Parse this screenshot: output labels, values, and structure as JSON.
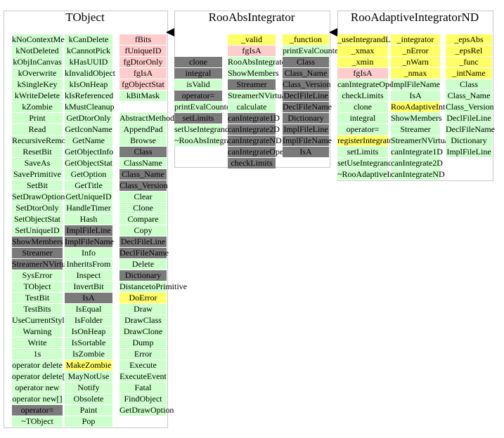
{
  "colors": {
    "green": "#ccffcc",
    "pink": "#ffcccc",
    "yellow": "#ffff66",
    "dark": "#7a7a7a"
  },
  "boxes": [
    {
      "title": "TObject",
      "columns": [
        [
          [
            "kNoContextMenu",
            "g"
          ],
          [
            "kNotDeleted",
            "g"
          ],
          [
            "kObjInCanvas",
            "g"
          ],
          [
            "kOverwrite",
            "g"
          ],
          [
            "kSingleKey",
            "g"
          ],
          [
            "kWriteDelete",
            "g"
          ],
          [
            "kZombie",
            "g"
          ],
          [
            "Print",
            "g"
          ],
          [
            "Read",
            "g"
          ],
          [
            "RecursiveRemove",
            "g"
          ],
          [
            "ResetBit",
            "g"
          ],
          [
            "SaveAs",
            "g"
          ],
          [
            "SavePrimitive",
            "g"
          ],
          [
            "SetBit",
            "g"
          ],
          [
            "SetDrawOption",
            "g"
          ],
          [
            "SetDtorOnly",
            "g"
          ],
          [
            "SetObjectStat",
            "g"
          ],
          [
            "SetUniqueID",
            "g"
          ],
          [
            "ShowMembers",
            "d"
          ],
          [
            "Streamer",
            "d"
          ],
          [
            "StreamerNVirtual",
            "d"
          ],
          [
            "SysError",
            "g"
          ],
          [
            "TObject",
            "g"
          ],
          [
            "TestBit",
            "g"
          ],
          [
            "TestBits",
            "g"
          ],
          [
            "UseCurrentStyle",
            "g"
          ],
          [
            "Warning",
            "g"
          ],
          [
            "Write",
            "g"
          ],
          [
            "1s",
            "g"
          ],
          [
            "operator delete",
            "g"
          ],
          [
            "operator delete[]",
            "g"
          ],
          [
            "operator new",
            "g"
          ],
          [
            "operator new[]",
            "g"
          ],
          [
            "operator=",
            "d"
          ],
          [
            "~TObject",
            "g"
          ]
        ],
        [
          [
            "kCanDelete",
            "g"
          ],
          [
            "kCannotPick",
            "g"
          ],
          [
            "kHasUUID",
            "g"
          ],
          [
            "kInvalidObject",
            "g"
          ],
          [
            "kIsOnHeap",
            "g"
          ],
          [
            "kIsReferenced",
            "g"
          ],
          [
            "kMustCleanup",
            "g"
          ],
          [
            "GetDtorOnly",
            "g"
          ],
          [
            "GetIconName",
            "g"
          ],
          [
            "GetName",
            "g"
          ],
          [
            "GetObjectInfo",
            "g"
          ],
          [
            "GetObjectStat",
            "g"
          ],
          [
            "GetOption",
            "g"
          ],
          [
            "GetTitle",
            "g"
          ],
          [
            "GetUniqueID",
            "g"
          ],
          [
            "HandleTimer",
            "g"
          ],
          [
            "Hash",
            "g"
          ],
          [
            "ImplFileLine",
            "d"
          ],
          [
            "ImplFileName",
            "d"
          ],
          [
            "Info",
            "g"
          ],
          [
            "InheritsFrom",
            "g"
          ],
          [
            "Inspect",
            "g"
          ],
          [
            "InvertBit",
            "g"
          ],
          [
            "IsA",
            "d"
          ],
          [
            "IsEqual",
            "g"
          ],
          [
            "IsFolder",
            "g"
          ],
          [
            "IsOnHeap",
            "g"
          ],
          [
            "IsSortable",
            "g"
          ],
          [
            "IsZombie",
            "g"
          ],
          [
            "MakeZombie",
            "y"
          ],
          [
            "MayNotUse",
            "g"
          ],
          [
            "Notify",
            "g"
          ],
          [
            "Obsolete",
            "g"
          ],
          [
            "Paint",
            "g"
          ],
          [
            "Pop",
            "g"
          ]
        ],
        [
          [
            "fBits",
            "p"
          ],
          [
            "fUniqueID",
            "p"
          ],
          [
            "fgDtorOnly",
            "p"
          ],
          [
            "fgIsA",
            "p"
          ],
          [
            "fgObjectStat",
            "p"
          ],
          [
            "kBitMask",
            "g"
          ],
          [
            "",
            ""
          ],
          [
            "AbstractMethod",
            "g"
          ],
          [
            "AppendPad",
            "g"
          ],
          [
            "Browse",
            "g"
          ],
          [
            "Class",
            "d"
          ],
          [
            "ClassName",
            "g"
          ],
          [
            "Class_Name",
            "d"
          ],
          [
            "Class_Version",
            "d"
          ],
          [
            "Clear",
            "g"
          ],
          [
            "Clone",
            "g"
          ],
          [
            "Compare",
            "g"
          ],
          [
            "Copy",
            "g"
          ],
          [
            "DeclFileLine",
            "d"
          ],
          [
            "DeclFileName",
            "d"
          ],
          [
            "Delete",
            "g"
          ],
          [
            "Dictionary",
            "d"
          ],
          [
            "DistancetoPrimitive",
            "g"
          ],
          [
            "DoError",
            "y"
          ],
          [
            "Draw",
            "g"
          ],
          [
            "DrawClass",
            "g"
          ],
          [
            "DrawClone",
            "g"
          ],
          [
            "Dump",
            "g"
          ],
          [
            "Error",
            "g"
          ],
          [
            "Execute",
            "g"
          ],
          [
            "ExecuteEvent",
            "g"
          ],
          [
            "Fatal",
            "g"
          ],
          [
            "FindObject",
            "g"
          ],
          [
            "GetDrawOption",
            "g"
          ]
        ]
      ]
    },
    {
      "title": "RooAbsIntegrator",
      "columns": [
        [
          [
            "",
            ""
          ],
          [
            "",
            ""
          ],
          [
            "clone",
            "d"
          ],
          [
            "integral",
            "d"
          ],
          [
            "isValid",
            "g"
          ],
          [
            "operator=",
            "d"
          ],
          [
            "printEvalCounter",
            "g"
          ],
          [
            "setLimits",
            "d"
          ],
          [
            "setUseIntegrandLimits",
            "g"
          ],
          [
            "~RooAbsIntegrator",
            "g"
          ]
        ],
        [
          [
            "_valid",
            "y"
          ],
          [
            "fgIsA",
            "p"
          ],
          [
            "RooAbsIntegrator",
            "g"
          ],
          [
            "ShowMembers",
            "g"
          ],
          [
            "Streamer",
            "d"
          ],
          [
            "StreamerNVirtual",
            "g"
          ],
          [
            "calculate",
            "g"
          ],
          [
            "canIntegrate1D",
            "d"
          ],
          [
            "canIntegrate2D",
            "d"
          ],
          [
            "canIntegrateND",
            "d"
          ],
          [
            "canIntegrateOpenEnded",
            "d"
          ],
          [
            "checkLimits",
            "d"
          ]
        ],
        [
          [
            "_function",
            "y"
          ],
          [
            "printEvalCounter",
            "g"
          ],
          [
            "Class",
            "d"
          ],
          [
            "Class_Name",
            "d"
          ],
          [
            "Class_Version",
            "d"
          ],
          [
            "DeclFileLine",
            "d"
          ],
          [
            "DeclFileName",
            "d"
          ],
          [
            "Dictionary",
            "d"
          ],
          [
            "ImplFileLine",
            "d"
          ],
          [
            "ImplFileName",
            "d"
          ],
          [
            "IsA",
            "d"
          ]
        ]
      ]
    },
    {
      "title": "RooAdaptiveIntegratorND",
      "columns": [
        [
          [
            "_useIntegrandLimits",
            "y"
          ],
          [
            "_xmax",
            "y"
          ],
          [
            "_xmin",
            "y"
          ],
          [
            "fgIsA",
            "p"
          ],
          [
            "canIntegrateOpenEnded",
            "g"
          ],
          [
            "checkLimits",
            "g"
          ],
          [
            "clone",
            "g"
          ],
          [
            "integral",
            "g"
          ],
          [
            "operator=",
            "g"
          ],
          [
            "registerIntegrator",
            "y"
          ],
          [
            "setLimits",
            "g"
          ],
          [
            "setUseIntegrandLimits",
            "g"
          ],
          [
            "~RooAdaptiveIntegratorND",
            "g"
          ]
        ],
        [
          [
            "_integrator",
            "y"
          ],
          [
            "_nError",
            "y"
          ],
          [
            "_nWarn",
            "y"
          ],
          [
            "_nmax",
            "y"
          ],
          [
            "ImplFileName",
            "g"
          ],
          [
            "IsA",
            "g"
          ],
          [
            "RooAdaptiveIntegratorND",
            "y"
          ],
          [
            "ShowMembers",
            "g"
          ],
          [
            "Streamer",
            "g"
          ],
          [
            "StreamerNVirtual",
            "g"
          ],
          [
            "canIntegrate1D",
            "g"
          ],
          [
            "canIntegrate2D",
            "g"
          ],
          [
            "canIntegrateND",
            "g"
          ]
        ],
        [
          [
            "_epsAbs",
            "y"
          ],
          [
            "_epsRel",
            "y"
          ],
          [
            "_func",
            "y"
          ],
          [
            "_intName",
            "y"
          ],
          [
            "Class",
            "g"
          ],
          [
            "Class_Name",
            "g"
          ],
          [
            "Class_Version",
            "g"
          ],
          [
            "DeclFileLine",
            "g"
          ],
          [
            "DeclFileName",
            "g"
          ],
          [
            "Dictionary",
            "g"
          ],
          [
            "ImplFileLine",
            "g"
          ]
        ]
      ]
    }
  ]
}
